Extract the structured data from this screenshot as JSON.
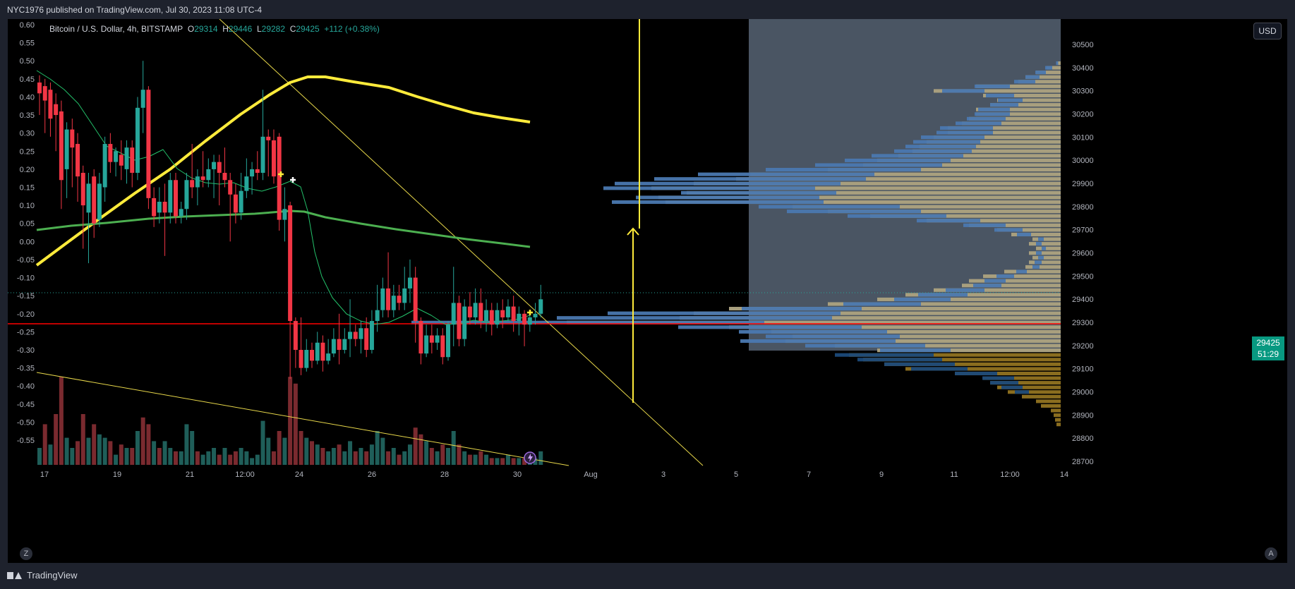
{
  "header": {
    "published": "NYC1976 published on TradingView.com, Jul 30, 2023 11:08 UTC-4"
  },
  "legend": {
    "symbol": "Bitcoin / U.S. Dollar, 4h, BITSTAMP",
    "o_label": "O",
    "o_value": "29314",
    "h_label": "H",
    "h_value": "29446",
    "l_label": "L",
    "l_value": "29282",
    "c_label": "C",
    "c_value": "29425",
    "change": "+112 (+0.38%)"
  },
  "currency_button": "USD",
  "last_price": {
    "price": "29425",
    "countdown": "51:29"
  },
  "zoom_button": "Z",
  "auto_button": "A",
  "brand": "TradingView",
  "colors": {
    "up": "#26a69a",
    "down": "#f23645",
    "ma_yellow": "#ffeb3b",
    "ma_green": "#4caf50",
    "support_line": "#ff0000",
    "profile_volume": "#a89f7e",
    "profile_blue": "#4a78b0",
    "profile_box": "#4a5563"
  },
  "chart_data": {
    "type": "candlestick",
    "left_axis": {
      "ticks": [
        "0.60",
        "0.55",
        "0.50",
        "0.45",
        "0.40",
        "0.35",
        "0.30",
        "0.25",
        "0.20",
        "0.15",
        "0.10",
        "0.05",
        "0.00",
        "-0.05",
        "-0.10",
        "-0.15",
        "-0.20",
        "-0.25",
        "-0.30",
        "-0.35",
        "-0.40",
        "-0.45",
        "-0.50",
        "-0.55"
      ],
      "range": [
        -0.585,
        0.6
      ]
    },
    "right_axis": {
      "ticks": [
        30500,
        30400,
        30300,
        30200,
        30100,
        30000,
        29900,
        29800,
        29700,
        29600,
        29500,
        29400,
        29300,
        29200,
        29100,
        29000,
        28900,
        28800,
        28700
      ],
      "range": [
        28700,
        30500
      ]
    },
    "x_axis": {
      "ticks": [
        "17",
        "19",
        "21",
        "12:00",
        "24",
        "26",
        "28",
        "30",
        "Aug",
        "3",
        "5",
        "7",
        "9",
        "11",
        "12:00",
        "14"
      ]
    },
    "candles": [
      [
        0.44,
        0.41,
        0.46,
        0.35
      ],
      [
        0.43,
        0.39,
        0.45,
        0.3
      ],
      [
        0.42,
        0.34,
        0.44,
        0.29
      ],
      [
        0.38,
        0.35,
        0.41,
        0.25
      ],
      [
        0.36,
        0.17,
        0.39,
        0.09
      ],
      [
        0.2,
        0.31,
        0.33,
        0.12
      ],
      [
        0.31,
        0.26,
        0.34,
        0.15
      ],
      [
        0.27,
        0.18,
        0.3,
        0.11
      ],
      [
        0.19,
        0.1,
        0.21,
        -0.02
      ],
      [
        0.08,
        0.16,
        0.19,
        -0.06
      ],
      [
        0.18,
        0.05,
        0.2,
        0.01
      ],
      [
        0.06,
        0.16,
        0.19,
        0.04
      ],
      [
        0.15,
        0.27,
        0.29,
        0.11
      ],
      [
        0.27,
        0.22,
        0.3,
        0.19
      ],
      [
        0.22,
        0.25,
        0.26,
        0.18
      ],
      [
        0.24,
        0.21,
        0.28,
        0.17
      ],
      [
        0.2,
        0.26,
        0.28,
        0.16
      ],
      [
        0.26,
        0.19,
        0.28,
        0.15
      ],
      [
        0.19,
        0.37,
        0.4,
        0.17
      ],
      [
        0.37,
        0.42,
        0.5,
        0.3
      ],
      [
        0.42,
        0.12,
        0.43,
        0.09
      ],
      [
        0.12,
        0.07,
        0.15,
        0.04
      ],
      [
        0.08,
        0.11,
        0.15,
        0.05
      ],
      [
        0.11,
        0.08,
        0.16,
        -0.04
      ],
      [
        0.08,
        0.17,
        0.19,
        0.05
      ],
      [
        0.17,
        0.07,
        0.19,
        0.05
      ],
      [
        0.07,
        0.09,
        0.11,
        0.05
      ],
      [
        0.09,
        0.17,
        0.19,
        0.06
      ],
      [
        0.17,
        0.15,
        0.27,
        0.12
      ],
      [
        0.15,
        0.18,
        0.2,
        0.1
      ],
      [
        0.18,
        0.17,
        0.25,
        0.15
      ],
      [
        0.17,
        0.2,
        0.23,
        0.15
      ],
      [
        0.2,
        0.22,
        0.24,
        0.12
      ],
      [
        0.22,
        0.19,
        0.24,
        0.1
      ],
      [
        0.19,
        0.17,
        0.26,
        0.15
      ],
      [
        0.17,
        0.13,
        0.19,
        0.0
      ],
      [
        0.13,
        0.08,
        0.16,
        0.05
      ],
      [
        0.08,
        0.14,
        0.19,
        0.06
      ],
      [
        0.14,
        0.18,
        0.23,
        0.12
      ],
      [
        0.18,
        0.2,
        0.22,
        0.13
      ],
      [
        0.2,
        0.19,
        0.25,
        0.17
      ],
      [
        0.19,
        0.29,
        0.42,
        0.17
      ],
      [
        0.29,
        0.28,
        0.31,
        0.18
      ],
      [
        0.28,
        0.18,
        0.31,
        0.16
      ],
      [
        0.29,
        0.06,
        0.3,
        0.03
      ],
      [
        0.06,
        0.09,
        0.15,
        0.0
      ],
      [
        0.1,
        -0.22,
        0.11,
        -0.38
      ],
      [
        -0.22,
        -0.3,
        -0.21,
        -0.35
      ],
      [
        -0.3,
        -0.35,
        -0.21,
        -0.37
      ],
      [
        -0.35,
        -0.3,
        -0.27,
        -0.36
      ],
      [
        -0.3,
        -0.33,
        -0.28,
        -0.35
      ],
      [
        -0.33,
        -0.28,
        -0.25,
        -0.34
      ],
      [
        -0.28,
        -0.33,
        -0.26,
        -0.36
      ],
      [
        -0.33,
        -0.31,
        -0.27,
        -0.34
      ],
      [
        -0.31,
        -0.27,
        -0.24,
        -0.32
      ],
      [
        -0.27,
        -0.3,
        -0.2,
        -0.34
      ],
      [
        -0.3,
        -0.27,
        -0.24,
        -0.31
      ],
      [
        -0.27,
        -0.25,
        -0.16,
        -0.32
      ],
      [
        -0.25,
        -0.27,
        -0.23,
        -0.29
      ],
      [
        -0.27,
        -0.24,
        -0.22,
        -0.31
      ],
      [
        -0.24,
        -0.3,
        -0.21,
        -0.32
      ],
      [
        -0.3,
        -0.22,
        -0.19,
        -0.31
      ],
      [
        -0.22,
        -0.19,
        -0.12,
        -0.25
      ],
      [
        -0.19,
        -0.13,
        -0.1,
        -0.21
      ],
      [
        -0.13,
        -0.19,
        -0.03,
        -0.21
      ],
      [
        -0.19,
        -0.15,
        -0.12,
        -0.21
      ],
      [
        -0.15,
        -0.17,
        -0.12,
        -0.19
      ],
      [
        -0.17,
        -0.13,
        -0.07,
        -0.19
      ],
      [
        -0.13,
        -0.1,
        -0.05,
        -0.17
      ],
      [
        -0.1,
        -0.22,
        -0.07,
        -0.28
      ],
      [
        -0.22,
        -0.31,
        -0.21,
        -0.34
      ],
      [
        -0.31,
        -0.26,
        -0.23,
        -0.32
      ],
      [
        -0.26,
        -0.28,
        -0.23,
        -0.31
      ],
      [
        -0.28,
        -0.26,
        -0.24,
        -0.3
      ],
      [
        -0.26,
        -0.32,
        -0.24,
        -0.34
      ],
      [
        -0.32,
        -0.23,
        -0.22,
        -0.33
      ],
      [
        -0.23,
        -0.17,
        -0.07,
        -0.29
      ],
      [
        -0.17,
        -0.27,
        -0.15,
        -0.29
      ],
      [
        -0.27,
        -0.18,
        -0.16,
        -0.29
      ],
      [
        -0.18,
        -0.21,
        -0.14,
        -0.23
      ],
      [
        -0.21,
        -0.17,
        -0.13,
        -0.23
      ],
      [
        -0.17,
        -0.22,
        -0.13,
        -0.24
      ],
      [
        -0.22,
        -0.19,
        -0.16,
        -0.25
      ],
      [
        -0.19,
        -0.23,
        -0.17,
        -0.26
      ],
      [
        -0.23,
        -0.19,
        -0.17,
        -0.24
      ],
      [
        -0.19,
        -0.21,
        -0.16,
        -0.24
      ],
      [
        -0.21,
        -0.18,
        -0.16,
        -0.22
      ],
      [
        -0.18,
        -0.22,
        -0.15,
        -0.25
      ],
      [
        -0.22,
        -0.2,
        -0.18,
        -0.26
      ],
      [
        -0.2,
        -0.23,
        -0.19,
        -0.29
      ],
      [
        -0.23,
        -0.21,
        -0.19,
        -0.25
      ],
      [
        -0.21,
        -0.2,
        -0.17,
        -0.23
      ],
      [
        -0.2,
        -0.16,
        -0.12,
        -0.21
      ]
    ],
    "volumes": [
      [
        0.05,
        "u"
      ],
      [
        0.12,
        "d"
      ],
      [
        0.06,
        "u"
      ],
      [
        0.15,
        "d"
      ],
      [
        0.26,
        "d"
      ],
      [
        0.08,
        "u"
      ],
      [
        0.05,
        "u"
      ],
      [
        0.07,
        "d"
      ],
      [
        0.15,
        "d"
      ],
      [
        0.08,
        "u"
      ],
      [
        0.12,
        "d"
      ],
      [
        0.09,
        "u"
      ],
      [
        0.08,
        "u"
      ],
      [
        0.07,
        "d"
      ],
      [
        0.03,
        "u"
      ],
      [
        0.06,
        "d"
      ],
      [
        0.05,
        "u"
      ],
      [
        0.05,
        "d"
      ],
      [
        0.1,
        "u"
      ],
      [
        0.14,
        "d"
      ],
      [
        0.12,
        "d"
      ],
      [
        0.07,
        "u"
      ],
      [
        0.05,
        "d"
      ],
      [
        0.07,
        "u"
      ],
      [
        0.05,
        "u"
      ],
      [
        0.04,
        "d"
      ],
      [
        0.04,
        "u"
      ],
      [
        0.12,
        "u"
      ],
      [
        0.1,
        "u"
      ],
      [
        0.04,
        "d"
      ],
      [
        0.03,
        "u"
      ],
      [
        0.04,
        "u"
      ],
      [
        0.05,
        "u"
      ],
      [
        0.03,
        "d"
      ],
      [
        0.05,
        "u"
      ],
      [
        0.03,
        "d"
      ],
      [
        0.04,
        "d"
      ],
      [
        0.05,
        "u"
      ],
      [
        0.04,
        "u"
      ],
      [
        0.02,
        "u"
      ],
      [
        0.03,
        "u"
      ],
      [
        0.13,
        "u"
      ],
      [
        0.08,
        "u"
      ],
      [
        0.04,
        "d"
      ],
      [
        0.1,
        "d"
      ],
      [
        0.08,
        "u"
      ],
      [
        0.26,
        "d"
      ],
      [
        0.24,
        "d"
      ],
      [
        0.1,
        "d"
      ],
      [
        0.08,
        "u"
      ],
      [
        0.07,
        "d"
      ],
      [
        0.06,
        "u"
      ],
      [
        0.05,
        "d"
      ],
      [
        0.04,
        "u"
      ],
      [
        0.05,
        "u"
      ],
      [
        0.06,
        "d"
      ],
      [
        0.04,
        "u"
      ],
      [
        0.07,
        "u"
      ],
      [
        0.04,
        "d"
      ],
      [
        0.05,
        "u"
      ],
      [
        0.04,
        "d"
      ],
      [
        0.06,
        "u"
      ],
      [
        0.1,
        "u"
      ],
      [
        0.08,
        "u"
      ],
      [
        0.04,
        "d"
      ],
      [
        0.05,
        "u"
      ],
      [
        0.03,
        "d"
      ],
      [
        0.04,
        "u"
      ],
      [
        0.06,
        "u"
      ],
      [
        0.11,
        "d"
      ],
      [
        0.09,
        "d"
      ],
      [
        0.07,
        "u"
      ],
      [
        0.05,
        "d"
      ],
      [
        0.04,
        "u"
      ],
      [
        0.06,
        "d"
      ],
      [
        0.05,
        "u"
      ],
      [
        0.1,
        "u"
      ],
      [
        0.06,
        "d"
      ],
      [
        0.04,
        "u"
      ],
      [
        0.03,
        "d"
      ],
      [
        0.03,
        "u"
      ],
      [
        0.04,
        "d"
      ],
      [
        0.03,
        "u"
      ],
      [
        0.02,
        "d"
      ],
      [
        0.02,
        "u"
      ],
      [
        0.02,
        "d"
      ],
      [
        0.03,
        "u"
      ],
      [
        0.02,
        "d"
      ],
      [
        0.02,
        "u"
      ],
      [
        0.02,
        "d"
      ],
      [
        0.03,
        "u"
      ],
      [
        0.02,
        "u"
      ],
      [
        0.04,
        "u"
      ]
    ],
    "profile": [
      [
        28860,
        6,
        0
      ],
      [
        28880,
        8,
        0
      ],
      [
        28900,
        10,
        0
      ],
      [
        28920,
        14,
        0
      ],
      [
        28940,
        28,
        0
      ],
      [
        28960,
        35,
        0
      ],
      [
        28980,
        55,
        0
      ],
      [
        29000,
        75,
        20
      ],
      [
        29020,
        90,
        30
      ],
      [
        29040,
        100,
        40
      ],
      [
        29060,
        110,
        45
      ],
      [
        29080,
        150,
        60
      ],
      [
        29100,
        220,
        80
      ],
      [
        29120,
        250,
        100
      ],
      [
        29140,
        280,
        120
      ],
      [
        29160,
        300,
        140
      ],
      [
        29180,
        260,
        100
      ],
      [
        29200,
        320,
        170
      ],
      [
        29220,
        390,
        220
      ],
      [
        29240,
        380,
        190
      ],
      [
        29260,
        410,
        210
      ],
      [
        29280,
        470,
        260
      ],
      [
        29300,
        700,
        500
      ],
      [
        29320,
        540,
        390
      ],
      [
        29340,
        520,
        330
      ],
      [
        29360,
        470,
        170
      ],
      [
        29380,
        330,
        110
      ],
      [
        29400,
        260,
        80
      ],
      [
        29420,
        220,
        70
      ],
      [
        29440,
        180,
        55
      ],
      [
        29460,
        140,
        40
      ],
      [
        29480,
        130,
        30
      ],
      [
        29500,
        110,
        25
      ],
      [
        29520,
        80,
        15
      ],
      [
        29540,
        50,
        10
      ],
      [
        29560,
        45,
        10
      ],
      [
        29580,
        40,
        8
      ],
      [
        29600,
        45,
        8
      ],
      [
        29620,
        35,
        6
      ],
      [
        29640,
        45,
        8
      ],
      [
        29660,
        40,
        8
      ],
      [
        29680,
        70,
        20
      ],
      [
        29700,
        90,
        40
      ],
      [
        29720,
        130,
        60
      ],
      [
        29740,
        190,
        90
      ],
      [
        29760,
        270,
        140
      ],
      [
        29780,
        330,
        190
      ],
      [
        29800,
        380,
        200
      ],
      [
        29820,
        560,
        300
      ],
      [
        29840,
        570,
        260
      ],
      [
        29860,
        530,
        220
      ],
      [
        29880,
        580,
        300
      ],
      [
        29900,
        520,
        320
      ],
      [
        29920,
        460,
        300
      ],
      [
        29940,
        440,
        250
      ],
      [
        29960,
        330,
        220
      ],
      [
        29980,
        280,
        180
      ],
      [
        30000,
        260,
        150
      ],
      [
        30020,
        230,
        130
      ],
      [
        30040,
        210,
        110
      ],
      [
        30060,
        200,
        100
      ],
      [
        30080,
        190,
        95
      ],
      [
        30100,
        180,
        90
      ],
      [
        30120,
        160,
        80
      ],
      [
        30140,
        160,
        75
      ],
      [
        30160,
        140,
        65
      ],
      [
        30180,
        130,
        55
      ],
      [
        30200,
        120,
        50
      ],
      [
        30220,
        120,
        45
      ],
      [
        30240,
        100,
        40
      ],
      [
        30260,
        90,
        35
      ],
      [
        30280,
        110,
        40
      ],
      [
        30300,
        180,
        60
      ],
      [
        30320,
        120,
        50
      ],
      [
        30340,
        60,
        30
      ],
      [
        30360,
        50,
        20
      ],
      [
        30380,
        35,
        15
      ],
      [
        30400,
        20,
        10
      ],
      [
        30420,
        6,
        3
      ]
    ]
  }
}
